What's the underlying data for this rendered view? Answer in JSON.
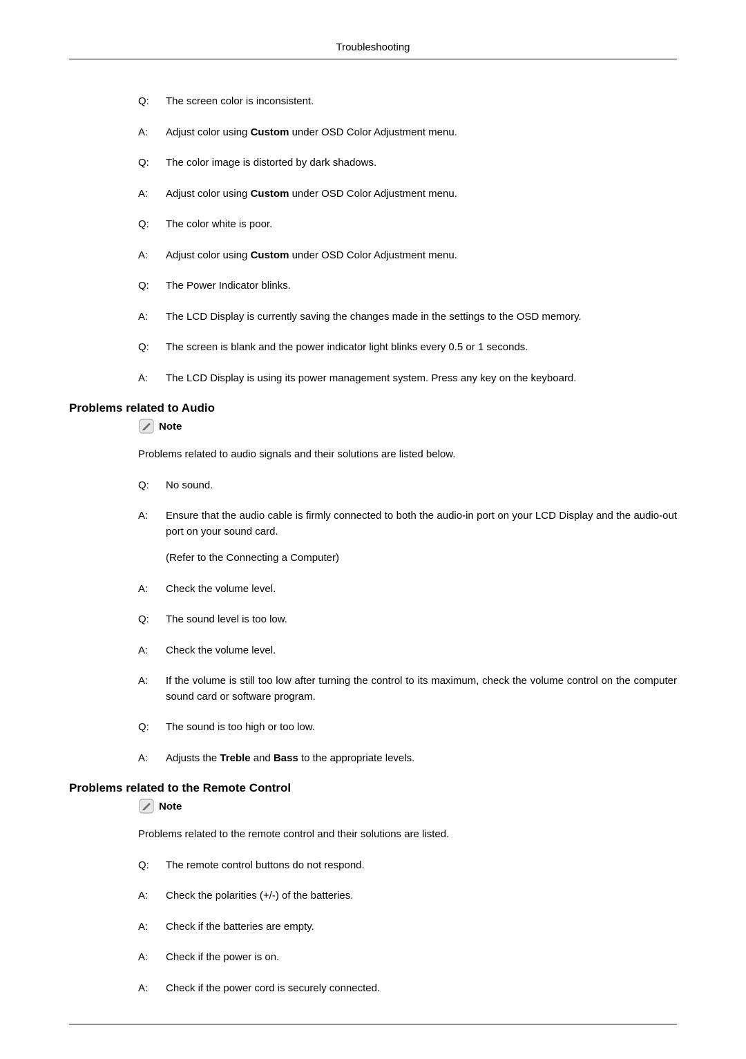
{
  "page_title": "Troubleshooting",
  "section1_qa": [
    {
      "label": "Q:",
      "text": "The screen color is inconsistent."
    },
    {
      "label": "A:",
      "text": "Adjust color using <span class=\"bold\">Custom</span> under OSD Color Adjustment menu."
    },
    {
      "label": "Q:",
      "text": "The color image is distorted by dark shadows."
    },
    {
      "label": "A:",
      "text": "Adjust color using <span class=\"bold\">Custom</span> under OSD Color Adjustment menu."
    },
    {
      "label": "Q:",
      "text": "The color white is poor."
    },
    {
      "label": "A:",
      "text": "Adjust color using <span class=\"bold\">Custom</span> under OSD Color Adjustment menu."
    },
    {
      "label": "Q:",
      "text": "The Power Indicator blinks."
    },
    {
      "label": "A:",
      "text": "The LCD Display is currently saving the changes made in the settings to the OSD memory."
    },
    {
      "label": "Q:",
      "text": "The screen is blank and the power indicator light blinks every 0.5 or 1 seconds."
    },
    {
      "label": "A:",
      "text": "The LCD Display is using its power management system. Press any key on the keyboard."
    }
  ],
  "section2_heading": "Problems related to Audio",
  "section2_note_label": "Note",
  "section2_intro": "Problems related to audio signals and their solutions are listed below.",
  "section2_qa": [
    {
      "label": "Q:",
      "text": "No sound."
    },
    {
      "label": "A:",
      "text": "<p>Ensure that the audio cable is firmly connected to both the audio-in port on your LCD Display and the audio-out port on your sound card.</p><p>(Refer to the Connecting a Computer)</p>"
    },
    {
      "label": "A:",
      "text": "Check the volume level."
    },
    {
      "label": "Q:",
      "text": "The sound level is too low."
    },
    {
      "label": "A:",
      "text": "Check the volume level."
    },
    {
      "label": "A:",
      "text": "If the volume is still too low after turning the control to its maximum, check the volume control on the computer sound card or software program."
    },
    {
      "label": "Q:",
      "text": "The sound is too high or too low."
    },
    {
      "label": "A:",
      "text": "Adjusts the <span class=\"bold\">Treble</span> and <span class=\"bold\">Bass</span> to the appropriate levels."
    }
  ],
  "section3_heading": "Problems related to the Remote Control",
  "section3_note_label": "Note",
  "section3_intro": "Problems related to the remote control and their solutions are listed.",
  "section3_qa": [
    {
      "label": "Q:",
      "text": "The remote control buttons do not respond."
    },
    {
      "label": "A:",
      "text": "Check the polarities (+/-) of the batteries."
    },
    {
      "label": "A:",
      "text": "Check if the batteries are empty."
    },
    {
      "label": "A:",
      "text": "Check if the power is on."
    },
    {
      "label": "A:",
      "text": "Check if the power cord is securely connected."
    }
  ],
  "colors": {
    "text": "#000000",
    "background": "#ffffff",
    "line": "#000000",
    "icon_fill": "#d6d6d6",
    "icon_stroke": "#888888",
    "icon_pencil": "#555555"
  },
  "fonts": {
    "body_size": 15,
    "heading_size": 17,
    "family": "Arial"
  }
}
